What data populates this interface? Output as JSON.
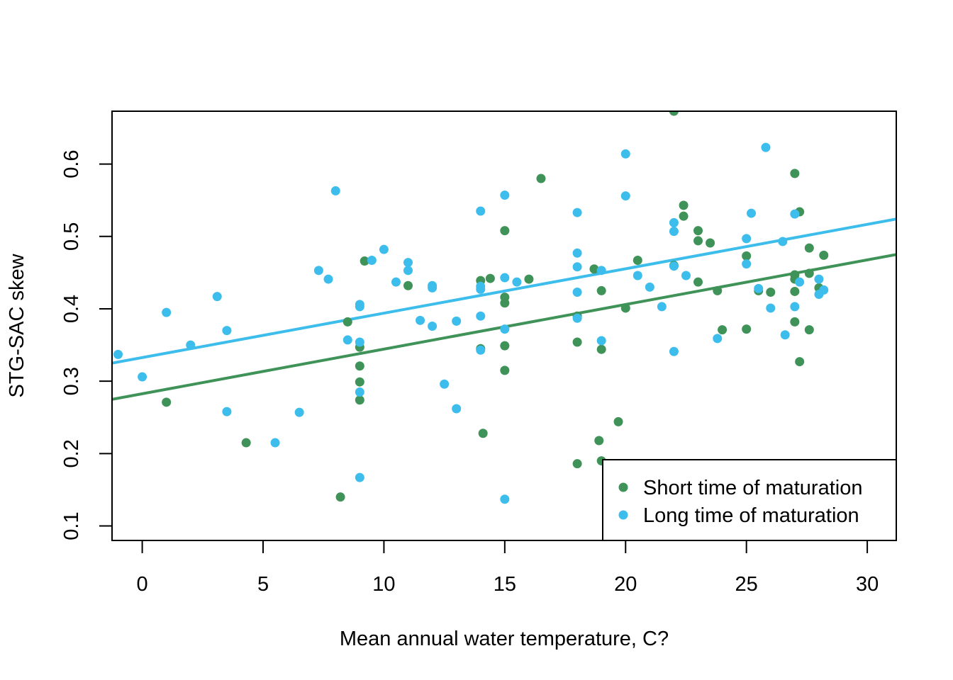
{
  "chart_data": {
    "type": "scatter",
    "title": "",
    "xlabel": "Mean annual water temperature, C?",
    "ylabel": "STG-SAC skew",
    "xlim": [
      -1.25,
      31.2
    ],
    "ylim": [
      0.08,
      0.673
    ],
    "xticks": [
      "0",
      "5",
      "10",
      "15",
      "20",
      "25",
      "30"
    ],
    "xtick_values": [
      0,
      5,
      10,
      15,
      20,
      25,
      30
    ],
    "yticks": [
      "0.1",
      "0.2",
      "0.3",
      "0.4",
      "0.5",
      "0.6"
    ],
    "ytick_values": [
      0.1,
      0.2,
      0.3,
      0.4,
      0.5,
      0.6
    ],
    "grid": false,
    "legend_position": "bottom-right",
    "series": [
      {
        "name": "Short time of maturation",
        "color": "#3f9358",
        "fit": {
          "x": [
            -1.25,
            31.2
          ],
          "y": [
            0.275,
            0.475
          ]
        },
        "points": [
          [
            1,
            0.271
          ],
          [
            4.3,
            0.215
          ],
          [
            8.2,
            0.14
          ],
          [
            8.5,
            0.382
          ],
          [
            9,
            0.347
          ],
          [
            9,
            0.321
          ],
          [
            9,
            0.299
          ],
          [
            9,
            0.274
          ],
          [
            9.2,
            0.466
          ],
          [
            11,
            0.432
          ],
          [
            14,
            0.439
          ],
          [
            14,
            0.345
          ],
          [
            14.1,
            0.228
          ],
          [
            14.4,
            0.442
          ],
          [
            15,
            0.508
          ],
          [
            15,
            0.416
          ],
          [
            15,
            0.408
          ],
          [
            15,
            0.349
          ],
          [
            15,
            0.315
          ],
          [
            16,
            0.441
          ],
          [
            16.5,
            0.58
          ],
          [
            18,
            0.39
          ],
          [
            18,
            0.354
          ],
          [
            18,
            0.186
          ],
          [
            18.7,
            0.455
          ],
          [
            18.9,
            0.218
          ],
          [
            19,
            0.425
          ],
          [
            19,
            0.344
          ],
          [
            19,
            0.19
          ],
          [
            19.7,
            0.244
          ],
          [
            20,
            0.401
          ],
          [
            20.5,
            0.467
          ],
          [
            22,
            0.673
          ],
          [
            22,
            0.46
          ],
          [
            22.4,
            0.543
          ],
          [
            22.4,
            0.528
          ],
          [
            23,
            0.508
          ],
          [
            23,
            0.494
          ],
          [
            23,
            0.437
          ],
          [
            23.5,
            0.491
          ],
          [
            23.8,
            0.425
          ],
          [
            24,
            0.371
          ],
          [
            25,
            0.473
          ],
          [
            25,
            0.372
          ],
          [
            25.5,
            0.425
          ],
          [
            26,
            0.423
          ],
          [
            27,
            0.587
          ],
          [
            27,
            0.447
          ],
          [
            27,
            0.441
          ],
          [
            27,
            0.424
          ],
          [
            27,
            0.382
          ],
          [
            27.2,
            0.534
          ],
          [
            27.2,
            0.327
          ],
          [
            27.6,
            0.484
          ],
          [
            27.6,
            0.449
          ],
          [
            27.6,
            0.371
          ],
          [
            28,
            0.429
          ],
          [
            28.2,
            0.474
          ]
        ]
      },
      {
        "name": "Long time of maturation",
        "color": "#3dbdec",
        "fit": {
          "x": [
            -1.25,
            31.2
          ],
          "y": [
            0.325,
            0.524
          ]
        },
        "points": [
          [
            -1,
            0.337
          ],
          [
            0,
            0.306
          ],
          [
            1,
            0.395
          ],
          [
            2,
            0.35
          ],
          [
            3.1,
            0.417
          ],
          [
            3.5,
            0.37
          ],
          [
            3.5,
            0.258
          ],
          [
            5.5,
            0.215
          ],
          [
            6.5,
            0.257
          ],
          [
            7.3,
            0.453
          ],
          [
            7.7,
            0.441
          ],
          [
            8,
            0.563
          ],
          [
            8.5,
            0.357
          ],
          [
            9,
            0.406
          ],
          [
            9,
            0.403
          ],
          [
            9,
            0.354
          ],
          [
            9,
            0.285
          ],
          [
            9,
            0.167
          ],
          [
            9.5,
            0.467
          ],
          [
            10,
            0.482
          ],
          [
            10.5,
            0.437
          ],
          [
            11,
            0.464
          ],
          [
            11,
            0.453
          ],
          [
            11.5,
            0.384
          ],
          [
            12,
            0.432
          ],
          [
            12,
            0.429
          ],
          [
            12,
            0.376
          ],
          [
            12.5,
            0.296
          ],
          [
            13,
            0.383
          ],
          [
            13,
            0.262
          ],
          [
            14,
            0.535
          ],
          [
            14,
            0.431
          ],
          [
            14,
            0.427
          ],
          [
            14,
            0.39
          ],
          [
            14,
            0.343
          ],
          [
            15,
            0.557
          ],
          [
            15,
            0.443
          ],
          [
            15,
            0.372
          ],
          [
            15,
            0.137
          ],
          [
            15.5,
            0.437
          ],
          [
            18,
            0.533
          ],
          [
            18,
            0.477
          ],
          [
            18,
            0.458
          ],
          [
            18,
            0.423
          ],
          [
            18,
            0.387
          ],
          [
            19,
            0.453
          ],
          [
            19,
            0.356
          ],
          [
            20,
            0.614
          ],
          [
            20,
            0.556
          ],
          [
            20.5,
            0.446
          ],
          [
            21,
            0.43
          ],
          [
            21.5,
            0.403
          ],
          [
            22,
            0.519
          ],
          [
            22,
            0.507
          ],
          [
            22,
            0.459
          ],
          [
            22,
            0.341
          ],
          [
            22.5,
            0.446
          ],
          [
            23.8,
            0.359
          ],
          [
            25,
            0.497
          ],
          [
            25,
            0.462
          ],
          [
            25.2,
            0.532
          ],
          [
            25.5,
            0.428
          ],
          [
            25.8,
            0.623
          ],
          [
            26,
            0.401
          ],
          [
            26.5,
            0.493
          ],
          [
            26.6,
            0.364
          ],
          [
            27,
            0.531
          ],
          [
            27,
            0.403
          ],
          [
            27.2,
            0.437
          ],
          [
            28,
            0.441
          ],
          [
            28,
            0.42
          ],
          [
            28.2,
            0.426
          ]
        ]
      }
    ]
  }
}
